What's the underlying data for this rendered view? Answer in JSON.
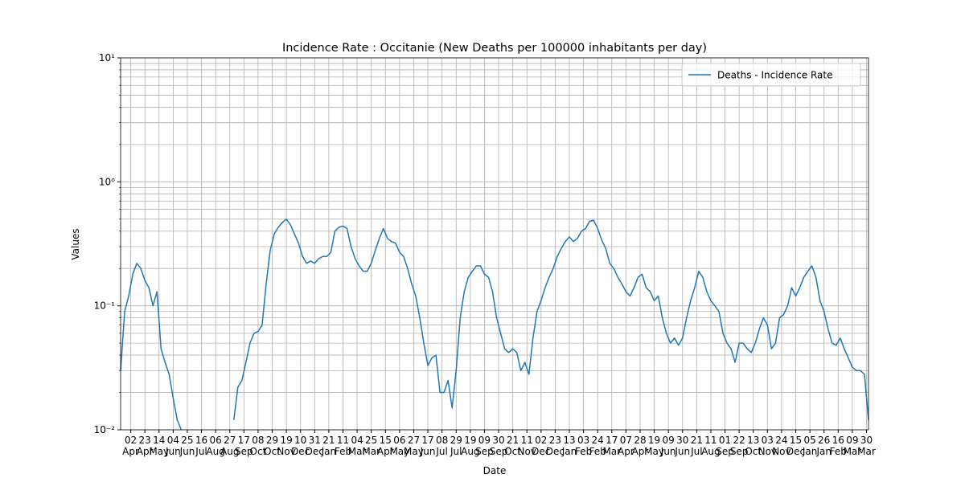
{
  "chart_data": {
    "type": "line",
    "title": "Incidence Rate : Occitanie  (New Deaths per 100000 inhabitants per day)",
    "x_label": "Date",
    "y_label": "Values",
    "log_y": true,
    "grid": true,
    "minor_grid": true,
    "legend": "upper right",
    "xlim": [
      0,
      1110
    ],
    "ylim": [
      0.01,
      10
    ],
    "yticks": [
      {
        "value": 0.01,
        "label": "10⁻²"
      },
      {
        "value": 0.1,
        "label": "10⁻¹"
      },
      {
        "value": 1,
        "label": "10⁰"
      },
      {
        "value": 10,
        "label": "10¹"
      }
    ],
    "xticks": [
      {
        "value": 15,
        "label": "02\nApr"
      },
      {
        "value": 36,
        "label": "23\nApr"
      },
      {
        "value": 57,
        "label": "14\nMay"
      },
      {
        "value": 78,
        "label": "04\nJun"
      },
      {
        "value": 99,
        "label": "25\nJun"
      },
      {
        "value": 120,
        "label": "16\nJul"
      },
      {
        "value": 141,
        "label": "06\nAug"
      },
      {
        "value": 162,
        "label": "27\nAug"
      },
      {
        "value": 183,
        "label": "17\nSep"
      },
      {
        "value": 204,
        "label": "08\nOct"
      },
      {
        "value": 225,
        "label": "29\nOct"
      },
      {
        "value": 246,
        "label": "19\nNov"
      },
      {
        "value": 267,
        "label": "10\nDec"
      },
      {
        "value": 288,
        "label": "31\nDec"
      },
      {
        "value": 309,
        "label": "21\nJan"
      },
      {
        "value": 330,
        "label": "11\nFeb"
      },
      {
        "value": 351,
        "label": "04\nMar"
      },
      {
        "value": 372,
        "label": "25\nMar"
      },
      {
        "value": 393,
        "label": "15\nApr"
      },
      {
        "value": 414,
        "label": "06\nMay"
      },
      {
        "value": 435,
        "label": "27\nMay"
      },
      {
        "value": 456,
        "label": "17\nJun"
      },
      {
        "value": 477,
        "label": "08\nJul"
      },
      {
        "value": 498,
        "label": "29\nJul"
      },
      {
        "value": 519,
        "label": "19\nAug"
      },
      {
        "value": 540,
        "label": "09\nSep"
      },
      {
        "value": 561,
        "label": "30\nSep"
      },
      {
        "value": 582,
        "label": "21\nOct"
      },
      {
        "value": 603,
        "label": "11\nNov"
      },
      {
        "value": 624,
        "label": "02\nDec"
      },
      {
        "value": 645,
        "label": "23\nDec"
      },
      {
        "value": 666,
        "label": "13\nJan"
      },
      {
        "value": 687,
        "label": "03\nFeb"
      },
      {
        "value": 708,
        "label": "24\nFeb"
      },
      {
        "value": 729,
        "label": "17\nMar"
      },
      {
        "value": 750,
        "label": "07\nApr"
      },
      {
        "value": 771,
        "label": "28\nApr"
      },
      {
        "value": 792,
        "label": "19\nMay"
      },
      {
        "value": 813,
        "label": "09\nJun"
      },
      {
        "value": 834,
        "label": "30\nJun"
      },
      {
        "value": 855,
        "label": "21\nJul"
      },
      {
        "value": 876,
        "label": "11\nAug"
      },
      {
        "value": 897,
        "label": "01\nSep"
      },
      {
        "value": 918,
        "label": "22\nSep"
      },
      {
        "value": 939,
        "label": "13\nOct"
      },
      {
        "value": 960,
        "label": "03\nNov"
      },
      {
        "value": 981,
        "label": "24\nNov"
      },
      {
        "value": 1002,
        "label": "15\nDec"
      },
      {
        "value": 1023,
        "label": "05\nJan"
      },
      {
        "value": 1044,
        "label": "26\nJan"
      },
      {
        "value": 1065,
        "label": "16\nFeb"
      },
      {
        "value": 1086,
        "label": "09\nMar"
      },
      {
        "value": 1107,
        "label": "30\nMar"
      }
    ],
    "x": [
      0,
      6,
      12,
      18,
      24,
      30,
      36,
      42,
      48,
      54,
      60,
      66,
      72,
      78,
      84,
      90,
      96,
      102,
      108,
      114,
      120,
      126,
      132,
      138,
      144,
      150,
      156,
      162,
      168,
      174,
      180,
      186,
      192,
      198,
      204,
      210,
      216,
      222,
      228,
      234,
      240,
      246,
      252,
      258,
      264,
      270,
      276,
      282,
      288,
      294,
      300,
      306,
      312,
      318,
      324,
      330,
      336,
      342,
      348,
      354,
      360,
      366,
      372,
      378,
      384,
      390,
      396,
      402,
      408,
      414,
      420,
      426,
      432,
      438,
      444,
      450,
      456,
      462,
      468,
      474,
      480,
      486,
      492,
      498,
      504,
      510,
      516,
      522,
      528,
      534,
      540,
      546,
      552,
      558,
      564,
      570,
      576,
      582,
      588,
      594,
      600,
      606,
      612,
      618,
      624,
      630,
      636,
      642,
      648,
      654,
      660,
      666,
      672,
      678,
      684,
      690,
      696,
      702,
      708,
      714,
      720,
      726,
      732,
      738,
      744,
      750,
      756,
      762,
      768,
      774,
      780,
      786,
      792,
      798,
      804,
      810,
      816,
      822,
      828,
      834,
      840,
      846,
      852,
      858,
      864,
      870,
      876,
      882,
      888,
      894,
      900,
      906,
      912,
      918,
      924,
      930,
      936,
      942,
      948,
      954,
      960,
      966,
      972,
      978,
      984,
      990,
      996,
      1002,
      1008,
      1014,
      1020,
      1026,
      1032,
      1038,
      1044,
      1050,
      1056,
      1062,
      1068,
      1074,
      1080,
      1086,
      1092,
      1098,
      1104,
      1110
    ],
    "series": [
      {
        "name": "Deaths - Incidence Rate",
        "color": "#1f77b4",
        "values": [
          0.03,
          0.09,
          0.12,
          0.18,
          0.22,
          0.2,
          0.16,
          0.14,
          0.1,
          0.13,
          0.045,
          0.035,
          0.028,
          0.018,
          0.012,
          0.01,
          null,
          null,
          null,
          null,
          null,
          null,
          null,
          null,
          null,
          null,
          null,
          null,
          0.012,
          0.022,
          0.025,
          0.035,
          0.05,
          0.06,
          0.062,
          0.07,
          0.15,
          0.28,
          0.38,
          0.43,
          0.47,
          0.5,
          0.45,
          0.38,
          0.32,
          0.25,
          0.22,
          0.23,
          0.22,
          0.24,
          0.25,
          0.25,
          0.27,
          0.4,
          0.43,
          0.44,
          0.42,
          0.3,
          0.24,
          0.21,
          0.19,
          0.19,
          0.22,
          0.28,
          0.35,
          0.42,
          0.35,
          0.33,
          0.32,
          0.27,
          0.25,
          0.2,
          0.15,
          0.12,
          0.08,
          0.05,
          0.033,
          0.038,
          0.04,
          0.02,
          0.02,
          0.025,
          0.015,
          0.03,
          0.08,
          0.13,
          0.17,
          0.19,
          0.21,
          0.21,
          0.18,
          0.17,
          0.13,
          0.08,
          0.06,
          0.045,
          0.042,
          0.045,
          0.042,
          0.03,
          0.035,
          0.028,
          0.055,
          0.09,
          0.11,
          0.14,
          0.17,
          0.2,
          0.25,
          0.29,
          0.33,
          0.36,
          0.33,
          0.35,
          0.4,
          0.42,
          0.48,
          0.49,
          0.42,
          0.34,
          0.29,
          0.22,
          0.2,
          0.17,
          0.15,
          0.13,
          0.12,
          0.14,
          0.17,
          0.18,
          0.14,
          0.13,
          0.11,
          0.12,
          0.08,
          0.06,
          0.05,
          0.055,
          0.048,
          0.055,
          0.08,
          0.11,
          0.14,
          0.19,
          0.17,
          0.13,
          0.11,
          0.1,
          0.09,
          0.06,
          0.05,
          0.045,
          0.035,
          0.05,
          0.05,
          0.045,
          0.042,
          0.05,
          0.065,
          0.08,
          0.07,
          0.045,
          0.05,
          0.08,
          0.085,
          0.1,
          0.14,
          0.12,
          0.14,
          0.17,
          0.19,
          0.21,
          0.17,
          0.11,
          0.09,
          0.065,
          0.05,
          0.048,
          0.055,
          0.045,
          0.038,
          0.032,
          0.03,
          0.03,
          0.028,
          0.012
        ]
      }
    ]
  }
}
